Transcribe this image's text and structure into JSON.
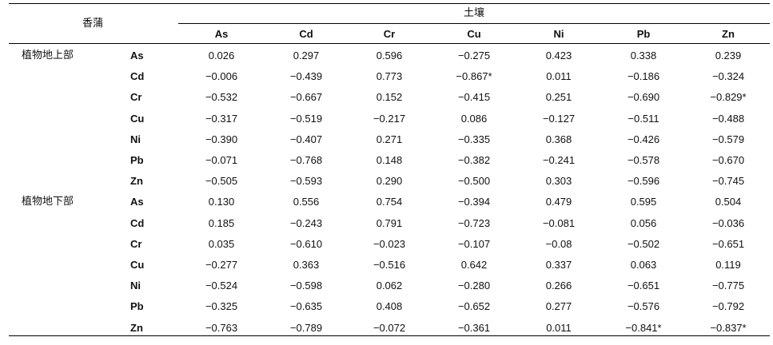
{
  "table": {
    "corner_label": "香蒲",
    "spanning_header": "土壤",
    "columns": [
      "As",
      "Cd",
      "Cr",
      "Cu",
      "Ni",
      "Pb",
      "Zn"
    ],
    "groups": [
      {
        "label": "植物地上部",
        "rows": [
          {
            "metal": "As",
            "values": [
              "0.026",
              "0.297",
              "0.596",
              "−0.275",
              "0.423",
              "0.338",
              "0.239"
            ]
          },
          {
            "metal": "Cd",
            "values": [
              "−0.006",
              "−0.439",
              "0.773",
              "−0.867*",
              "0.011",
              "−0.186",
              "−0.324"
            ]
          },
          {
            "metal": "Cr",
            "values": [
              "−0.532",
              "−0.667",
              "0.152",
              "−0.415",
              "0.251",
              "−0.690",
              "−0.829*"
            ]
          },
          {
            "metal": "Cu",
            "values": [
              "−0.317",
              "−0.519",
              "−0.217",
              "0.086",
              "−0.127",
              "−0.511",
              "−0.488"
            ]
          },
          {
            "metal": "Ni",
            "values": [
              "−0.390",
              "−0.407",
              "0.271",
              "−0.335",
              "0.368",
              "−0.426",
              "−0.579"
            ]
          },
          {
            "metal": "Pb",
            "values": [
              "−0.071",
              "−0.768",
              "0.148",
              "−0.382",
              "−0.241",
              "−0.578",
              "−0.670"
            ]
          },
          {
            "metal": "Zn",
            "values": [
              "−0.505",
              "−0.593",
              "0.290",
              "−0.500",
              "0.303",
              "−0.596",
              "−0.745"
            ]
          }
        ]
      },
      {
        "label": "植物地下部",
        "rows": [
          {
            "metal": "As",
            "values": [
              "0.130",
              "0.556",
              "0.754",
              "−0.394",
              "0.479",
              "0.595",
              "0.504"
            ]
          },
          {
            "metal": "Cd",
            "values": [
              "0.185",
              "−0.243",
              "0.791",
              "−0.723",
              "−0.081",
              "0.056",
              "−0.036"
            ]
          },
          {
            "metal": "Cr",
            "values": [
              "0.035",
              "−0.610",
              "−0.023",
              "−0.107",
              "−0.08",
              "−0.502",
              "−0.651"
            ]
          },
          {
            "metal": "Cu",
            "values": [
              "−0.277",
              "0.363",
              "−0.516",
              "0.642",
              "0.337",
              "0.063",
              "0.119"
            ]
          },
          {
            "metal": "Ni",
            "values": [
              "−0.524",
              "−0.598",
              "0.062",
              "−0.280",
              "0.266",
              "−0.651",
              "−0.775"
            ]
          },
          {
            "metal": "Pb",
            "values": [
              "−0.325",
              "−0.635",
              "0.408",
              "−0.652",
              "0.277",
              "−0.576",
              "−0.792"
            ]
          },
          {
            "metal": "Zn",
            "values": [
              "−0.763",
              "−0.789",
              "−0.072",
              "−0.361",
              "0.011",
              "−0.841*",
              "−0.837*"
            ]
          }
        ]
      }
    ]
  }
}
